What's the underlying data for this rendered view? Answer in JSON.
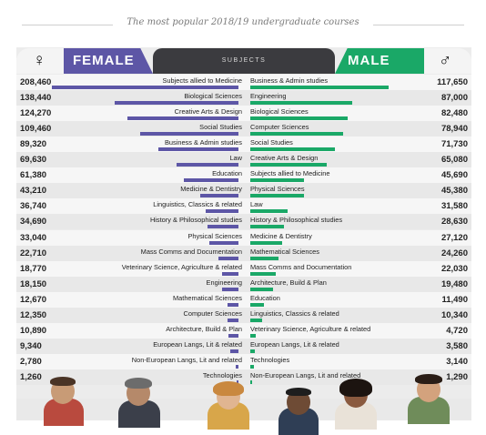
{
  "title": "The most popular 2018/19 undergraduate courses",
  "header": {
    "female_label": "FEMALE",
    "subjects_label": "SUBJECTS",
    "male_label": "MALE",
    "female_icon": "female-symbol-icon",
    "male_icon": "male-symbol-icon",
    "female_glyph": "♀",
    "male_glyph": "♂"
  },
  "colors": {
    "female": "#5d56a6",
    "male": "#1aa867",
    "subjects_tab": "#3b3b3f"
  },
  "female": [
    {
      "subject": "Subjects allied to Medicine",
      "value": 208460,
      "value_label": "208,460"
    },
    {
      "subject": "Biological Sciences",
      "value": 138440,
      "value_label": "138,440"
    },
    {
      "subject": "Creative Arts & Design",
      "value": 124270,
      "value_label": "124,270"
    },
    {
      "subject": "Social Studies",
      "value": 109460,
      "value_label": "109,460"
    },
    {
      "subject": "Business & Admin studies",
      "value": 89320,
      "value_label": "89,320"
    },
    {
      "subject": "Law",
      "value": 69630,
      "value_label": "69,630"
    },
    {
      "subject": "Education",
      "value": 61380,
      "value_label": "61,380"
    },
    {
      "subject": "Medicine & Dentistry",
      "value": 43210,
      "value_label": "43,210"
    },
    {
      "subject": "Linguistics, Classics & related",
      "value": 36740,
      "value_label": "36,740"
    },
    {
      "subject": "History & Philosophical studies",
      "value": 34690,
      "value_label": "34,690"
    },
    {
      "subject": "Physical Sciences",
      "value": 33040,
      "value_label": "33,040"
    },
    {
      "subject": "Mass Comms and Documentation",
      "value": 22710,
      "value_label": "22,710"
    },
    {
      "subject": "Veterinary Science, Agriculture & related",
      "value": 18770,
      "value_label": "18,770"
    },
    {
      "subject": "Engineering",
      "value": 18150,
      "value_label": "18,150"
    },
    {
      "subject": "Mathematical Sciences",
      "value": 12670,
      "value_label": "12,670"
    },
    {
      "subject": "Computer Sciences",
      "value": 12350,
      "value_label": "12,350"
    },
    {
      "subject": "Architecture, Build & Plan",
      "value": 10890,
      "value_label": "10,890"
    },
    {
      "subject": "European Langs, Lit & related",
      "value": 9340,
      "value_label": "9,340"
    },
    {
      "subject": "Non-European Langs, Lit and related",
      "value": 2780,
      "value_label": "2,780"
    },
    {
      "subject": "Technologies",
      "value": 1260,
      "value_label": "1,260"
    }
  ],
  "male": [
    {
      "subject": "Business & Admin studies",
      "value": 117650,
      "value_label": "117,650"
    },
    {
      "subject": "Engineering",
      "value": 87000,
      "value_label": "87,000"
    },
    {
      "subject": "Biological Sciences",
      "value": 82480,
      "value_label": "82,480"
    },
    {
      "subject": "Computer Sciences",
      "value": 78940,
      "value_label": "78,940"
    },
    {
      "subject": "Social Studies",
      "value": 71730,
      "value_label": "71,730"
    },
    {
      "subject": "Creative Arts & Design",
      "value": 65080,
      "value_label": "65,080"
    },
    {
      "subject": "Subjects allied to Medicine",
      "value": 45690,
      "value_label": "45,690"
    },
    {
      "subject": "Physical Sciences",
      "value": 45380,
      "value_label": "45,380"
    },
    {
      "subject": "Law",
      "value": 31580,
      "value_label": "31,580"
    },
    {
      "subject": "History & Philosophical studies",
      "value": 28630,
      "value_label": "28,630"
    },
    {
      "subject": "Medicine & Dentistry",
      "value": 27120,
      "value_label": "27,120"
    },
    {
      "subject": "Mathematical Sciences",
      "value": 24260,
      "value_label": "24,260"
    },
    {
      "subject": "Mass Comms and Documentation",
      "value": 22030,
      "value_label": "22,030"
    },
    {
      "subject": "Architecture, Build & Plan",
      "value": 19480,
      "value_label": "19,480"
    },
    {
      "subject": "Education",
      "value": 11490,
      "value_label": "11,490"
    },
    {
      "subject": "Linguistics, Classics & related",
      "value": 10340,
      "value_label": "10,340"
    },
    {
      "subject": "Veterinary Science, Agriculture & related",
      "value": 4720,
      "value_label": "4,720"
    },
    {
      "subject": "European Langs, Lit & related",
      "value": 3580,
      "value_label": "3,580"
    },
    {
      "subject": "Technologies",
      "value": 3140,
      "value_label": "3,140"
    },
    {
      "subject": "Non-European Langs, Lit and related",
      "value": 1290,
      "value_label": "1,290"
    }
  ],
  "chart_data": {
    "type": "bar",
    "title": "The most popular 2018/19 undergraduate courses",
    "orientation": "horizontal",
    "layout": "diverging, ranked per side",
    "series": [
      {
        "name": "FEMALE",
        "color": "#5d56a6",
        "categories": [
          "Subjects allied to Medicine",
          "Biological Sciences",
          "Creative Arts & Design",
          "Social Studies",
          "Business & Admin studies",
          "Law",
          "Education",
          "Medicine & Dentistry",
          "Linguistics, Classics & related",
          "History & Philosophical studies",
          "Physical Sciences",
          "Mass Comms and Documentation",
          "Veterinary Science, Agriculture & related",
          "Engineering",
          "Mathematical Sciences",
          "Computer Sciences",
          "Architecture, Build & Plan",
          "European Langs, Lit & related",
          "Non-European Langs, Lit and related",
          "Technologies"
        ],
        "values": [
          208460,
          138440,
          124270,
          109460,
          89320,
          69630,
          61380,
          43210,
          36740,
          34690,
          33040,
          22710,
          18770,
          18150,
          12670,
          12350,
          10890,
          9340,
          2780,
          1260
        ]
      },
      {
        "name": "MALE",
        "color": "#1aa867",
        "categories": [
          "Business & Admin studies",
          "Engineering",
          "Biological Sciences",
          "Computer Sciences",
          "Social Studies",
          "Creative Arts & Design",
          "Subjects allied to Medicine",
          "Physical Sciences",
          "Law",
          "History & Philosophical studies",
          "Medicine & Dentistry",
          "Mathematical Sciences",
          "Mass Comms and Documentation",
          "Architecture, Build & Plan",
          "Education",
          "Linguistics, Classics & related",
          "Veterinary Science, Agriculture & related",
          "European Langs, Lit & related",
          "Technologies",
          "Non-European Langs, Lit and related"
        ],
        "values": [
          117650,
          87000,
          82480,
          78940,
          71730,
          65080,
          45690,
          45380,
          31580,
          28630,
          27120,
          24260,
          22030,
          19480,
          11490,
          10340,
          4720,
          3580,
          3140,
          1290
        ]
      }
    ],
    "grid": false,
    "legend": "top"
  }
}
